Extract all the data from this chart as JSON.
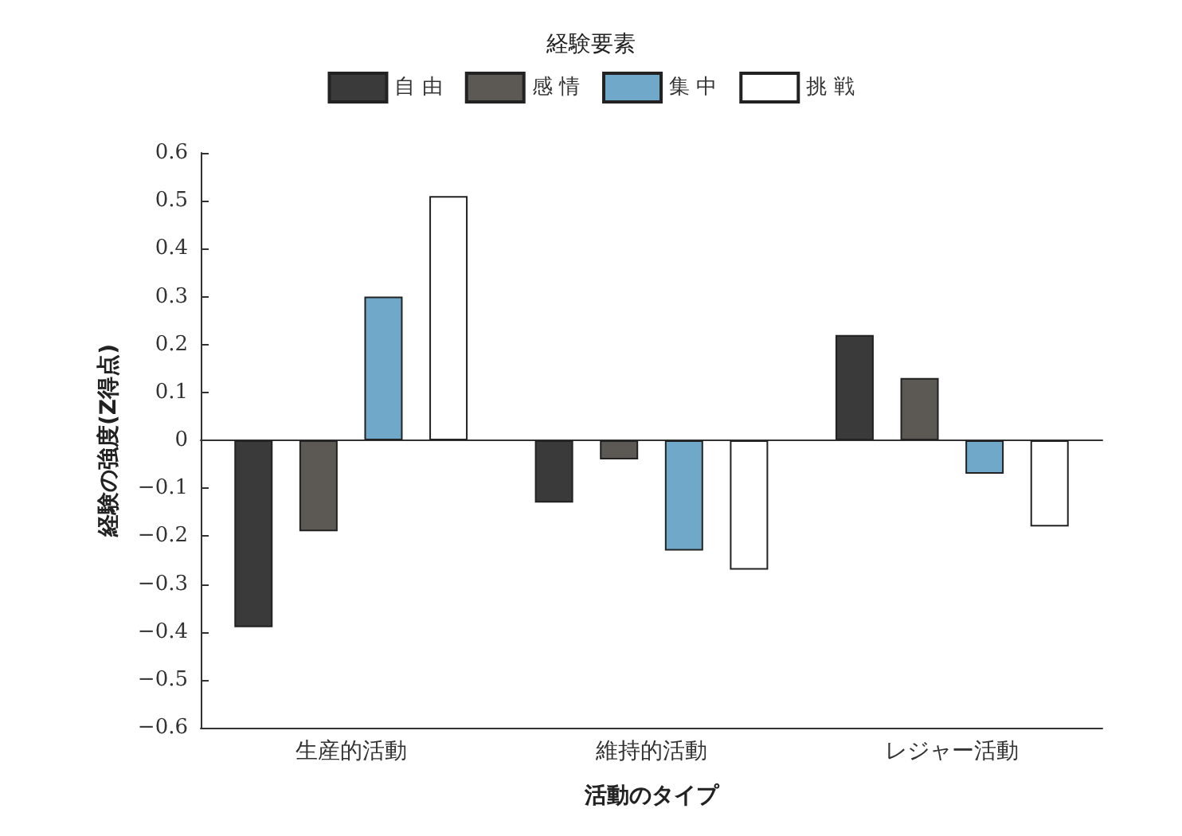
{
  "chart_data": {
    "type": "bar",
    "legend_title": "経験要素",
    "xlabel": "活動のタイプ",
    "ylabel": "経験の強度(Z得点)",
    "categories": [
      "生産的活動",
      "維持的活動",
      "レジャー活動"
    ],
    "series": [
      {
        "name": "自 由",
        "color": "#3a3a3a",
        "values": [
          -0.39,
          -0.13,
          0.22
        ]
      },
      {
        "name": "感 情",
        "color": "#5c5853",
        "values": [
          -0.19,
          -0.04,
          0.13
        ]
      },
      {
        "name": "集 中",
        "color": "#6fa8c8",
        "values": [
          0.3,
          -0.23,
          -0.07
        ]
      },
      {
        "name": "挑 戦",
        "color": "#ffffff",
        "values": [
          0.51,
          -0.27,
          -0.18
        ]
      }
    ],
    "ylim": [
      -0.6,
      0.6
    ],
    "yticks": [
      -0.6,
      -0.5,
      -0.4,
      -0.3,
      -0.2,
      -0.1,
      0,
      0.1,
      0.2,
      0.3,
      0.4,
      0.5,
      0.6
    ],
    "legend": "top"
  }
}
